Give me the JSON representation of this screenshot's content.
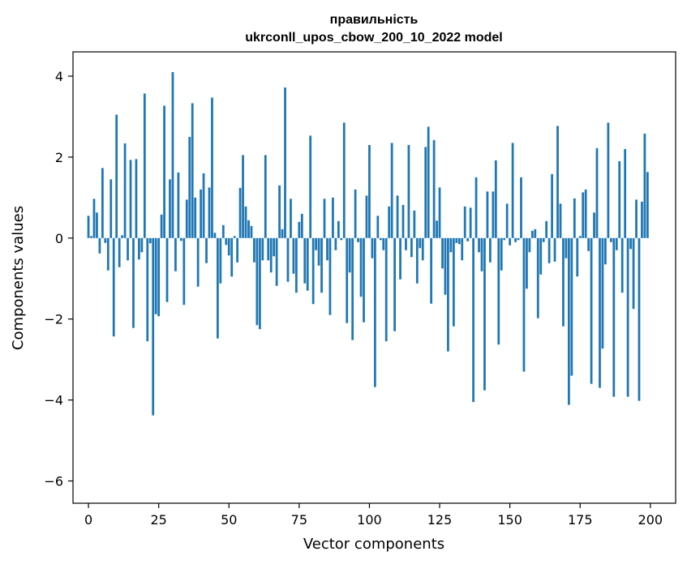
{
  "colors": {
    "bar": "#1f77b4",
    "axis": "#000000",
    "background": "#ffffff"
  },
  "chart_data": {
    "type": "bar",
    "title_line1": "правильність",
    "title_line2": "ukrconll_upos_cbow_200_10_2022 model",
    "xlabel": "Vector components",
    "ylabel": "Components values",
    "xlim": [
      -5.5,
      209
    ],
    "ylim": [
      -6.55,
      4.6
    ],
    "x_ticks": [
      0,
      25,
      50,
      75,
      100,
      125,
      150,
      175,
      200
    ],
    "x_tick_labels": [
      "0",
      "25",
      "50",
      "75",
      "100",
      "125",
      "150",
      "175",
      "200"
    ],
    "y_ticks": [
      -6,
      -4,
      -2,
      0,
      2,
      4
    ],
    "y_tick_labels": [
      "−6",
      "−4",
      "−2",
      "0",
      "2",
      "4"
    ],
    "grid": false,
    "bar_width": 0.8,
    "x": [
      0,
      1,
      2,
      3,
      4,
      5,
      6,
      7,
      8,
      9,
      10,
      11,
      12,
      13,
      14,
      15,
      16,
      17,
      18,
      19,
      20,
      21,
      22,
      23,
      24,
      25,
      26,
      27,
      28,
      29,
      30,
      31,
      32,
      33,
      34,
      35,
      36,
      37,
      38,
      39,
      40,
      41,
      42,
      43,
      44,
      45,
      46,
      47,
      48,
      49,
      50,
      51,
      52,
      53,
      54,
      55,
      56,
      57,
      58,
      59,
      60,
      61,
      62,
      63,
      64,
      65,
      66,
      67,
      68,
      69,
      70,
      71,
      72,
      73,
      74,
      75,
      76,
      77,
      78,
      79,
      80,
      81,
      82,
      83,
      84,
      85,
      86,
      87,
      88,
      89,
      90,
      91,
      92,
      93,
      94,
      95,
      96,
      97,
      98,
      99,
      100,
      101,
      102,
      103,
      104,
      105,
      106,
      107,
      108,
      109,
      110,
      111,
      112,
      113,
      114,
      115,
      116,
      117,
      118,
      119,
      120,
      121,
      122,
      123,
      124,
      125,
      126,
      127,
      128,
      129,
      130,
      131,
      132,
      133,
      134,
      135,
      136,
      137,
      138,
      139,
      140,
      141,
      142,
      143,
      144,
      145,
      146,
      147,
      148,
      149,
      150,
      151,
      152,
      153,
      154,
      155,
      156,
      157,
      158,
      159,
      160,
      161,
      162,
      163,
      164,
      165,
      166,
      167,
      168,
      169,
      170,
      171,
      172,
      173,
      174,
      175,
      176,
      177,
      178,
      179,
      180,
      181,
      182,
      183,
      184,
      185,
      186,
      187,
      188,
      189,
      190,
      191,
      192,
      193,
      194,
      195,
      196,
      197,
      198,
      199
    ],
    "values": [
      0.55,
      0.05,
      0.97,
      0.63,
      -0.38,
      1.73,
      -0.12,
      -0.8,
      1.45,
      -2.43,
      3.05,
      -0.72,
      0.07,
      2.34,
      -0.55,
      1.93,
      -2.22,
      1.95,
      -0.53,
      -0.35,
      3.57,
      -2.55,
      -0.13,
      -4.38,
      -1.88,
      -1.93,
      0.58,
      3.27,
      -1.58,
      1.45,
      4.1,
      -0.82,
      1.62,
      -0.07,
      -1.65,
      0.95,
      2.5,
      3.33,
      1.0,
      -1.2,
      1.2,
      1.6,
      -0.62,
      1.25,
      3.47,
      0.13,
      -2.48,
      -1.12,
      0.32,
      -0.17,
      -0.43,
      -0.95,
      0.05,
      -0.6,
      1.24,
      2.05,
      0.78,
      0.44,
      0.3,
      -0.6,
      -2.15,
      -2.25,
      -0.55,
      2.05,
      -0.55,
      -0.85,
      -0.45,
      -1.18,
      1.3,
      0.22,
      3.72,
      -1.08,
      0.97,
      -0.88,
      -1.35,
      0.4,
      0.6,
      -1.12,
      -1.3,
      2.53,
      -1.63,
      -0.3,
      -0.68,
      -1.35,
      0.97,
      -0.55,
      -1.9,
      1.0,
      -0.3,
      0.42,
      -0.05,
      2.85,
      -2.1,
      -0.85,
      -2.52,
      1.2,
      -0.1,
      -1.45,
      -2.08,
      1.05,
      2.3,
      -0.5,
      -3.68,
      0.55,
      -0.05,
      -0.3,
      -2.55,
      0.78,
      2.35,
      -2.3,
      1.05,
      -1.02,
      0.82,
      -0.3,
      2.3,
      -0.47,
      0.68,
      -1.12,
      -0.25,
      -0.55,
      2.25,
      2.75,
      -1.62,
      2.42,
      0.43,
      1.25,
      -0.75,
      -1.4,
      -2.8,
      -0.35,
      -2.18,
      -0.12,
      -0.15,
      -0.55,
      0.78,
      -0.08,
      0.75,
      -4.05,
      1.5,
      -0.35,
      -0.82,
      -3.76,
      1.15,
      -0.6,
      1.15,
      1.92,
      -2.63,
      -0.8,
      -0.05,
      0.85,
      -0.18,
      2.35,
      -0.1,
      -0.05,
      1.5,
      -3.3,
      -1.25,
      -0.35,
      0.18,
      0.22,
      -1.98,
      -0.9,
      -0.1,
      0.42,
      -0.62,
      1.58,
      -0.58,
      2.77,
      0.85,
      -2.18,
      -0.5,
      -4.12,
      -3.4,
      0.98,
      -0.95,
      0.05,
      1.13,
      1.2,
      -0.32,
      -3.6,
      0.63,
      2.22,
      -3.7,
      -2.73,
      -0.65,
      2.85,
      -0.1,
      -3.92,
      -0.3,
      1.9,
      -1.35,
      2.2,
      -3.92,
      -0.27,
      -1.75,
      0.95,
      -4.02,
      0.9,
      2.58,
      1.63
    ]
  }
}
